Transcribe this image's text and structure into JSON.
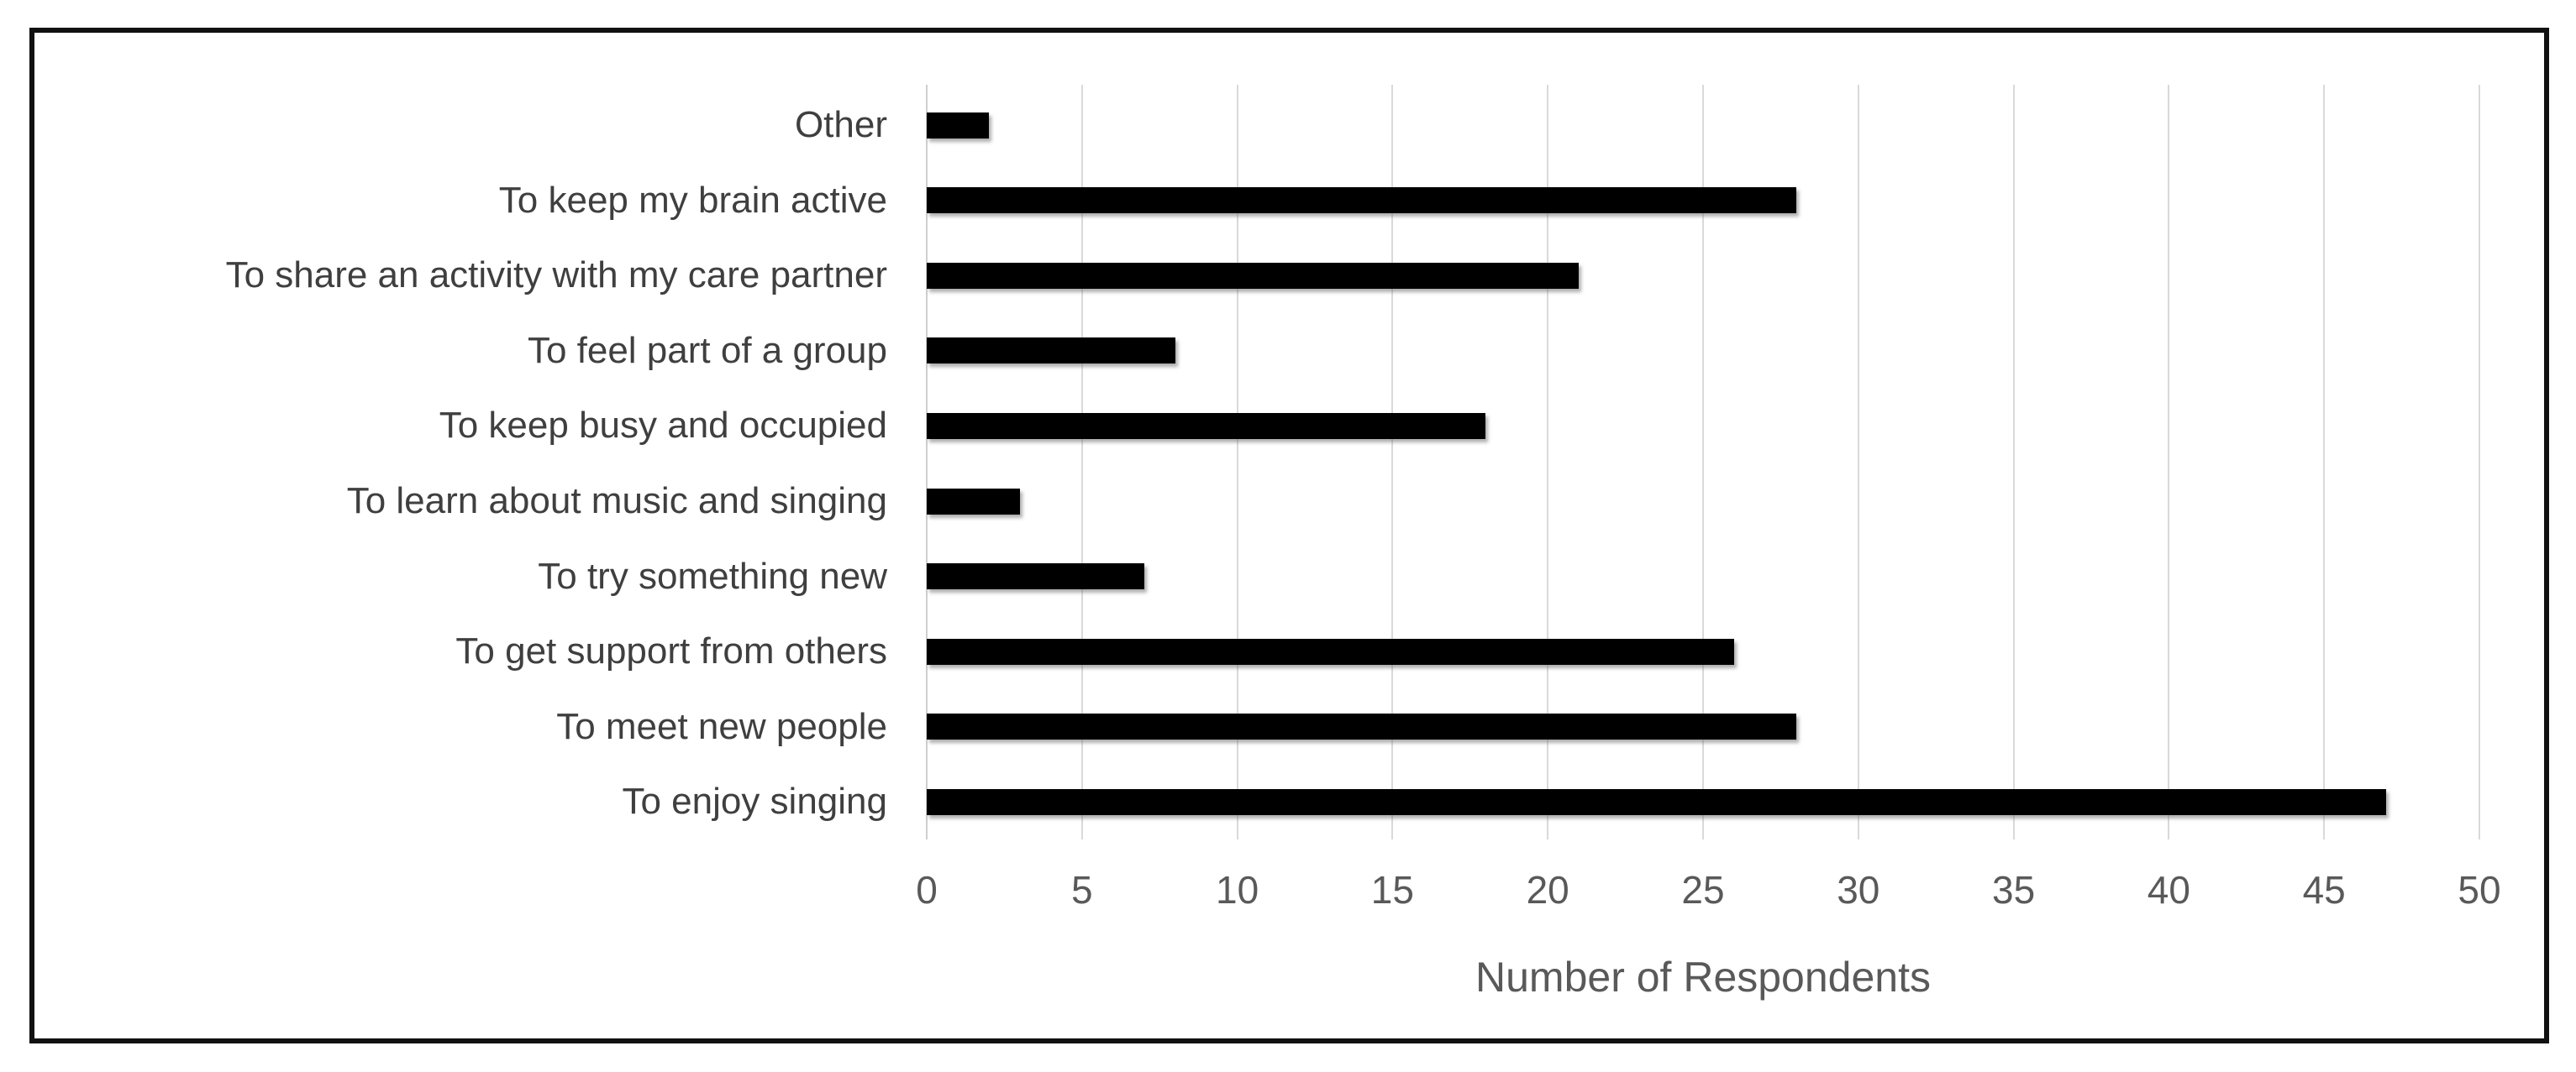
{
  "chart_data": {
    "type": "bar",
    "orientation": "horizontal",
    "title": "",
    "xlabel": "Number of Respondents",
    "ylabel": "",
    "xlim": [
      0,
      50
    ],
    "xticks": [
      0,
      5,
      10,
      15,
      20,
      25,
      30,
      35,
      40,
      45,
      50
    ],
    "grid": "vertical",
    "legend": "none",
    "categories": [
      "Other",
      "To keep my brain active",
      "To share an activity with my care partner",
      "To feel part of a group",
      "To keep busy and occupied",
      "To learn about music and singing",
      "To try something new",
      "To get support from others",
      "To meet new people",
      "To enjoy singing"
    ],
    "values": [
      2,
      28,
      21,
      8,
      18,
      3,
      7,
      26,
      28,
      47
    ],
    "colors": {
      "bar": "#000000",
      "gridline": "#d9d9d9",
      "zero_line": "#cfcfcf",
      "category_label": "#3f3f3f",
      "tick_label": "#595959",
      "axis_title": "#595959",
      "frame_border": "#111111",
      "background": "#ffffff"
    }
  }
}
